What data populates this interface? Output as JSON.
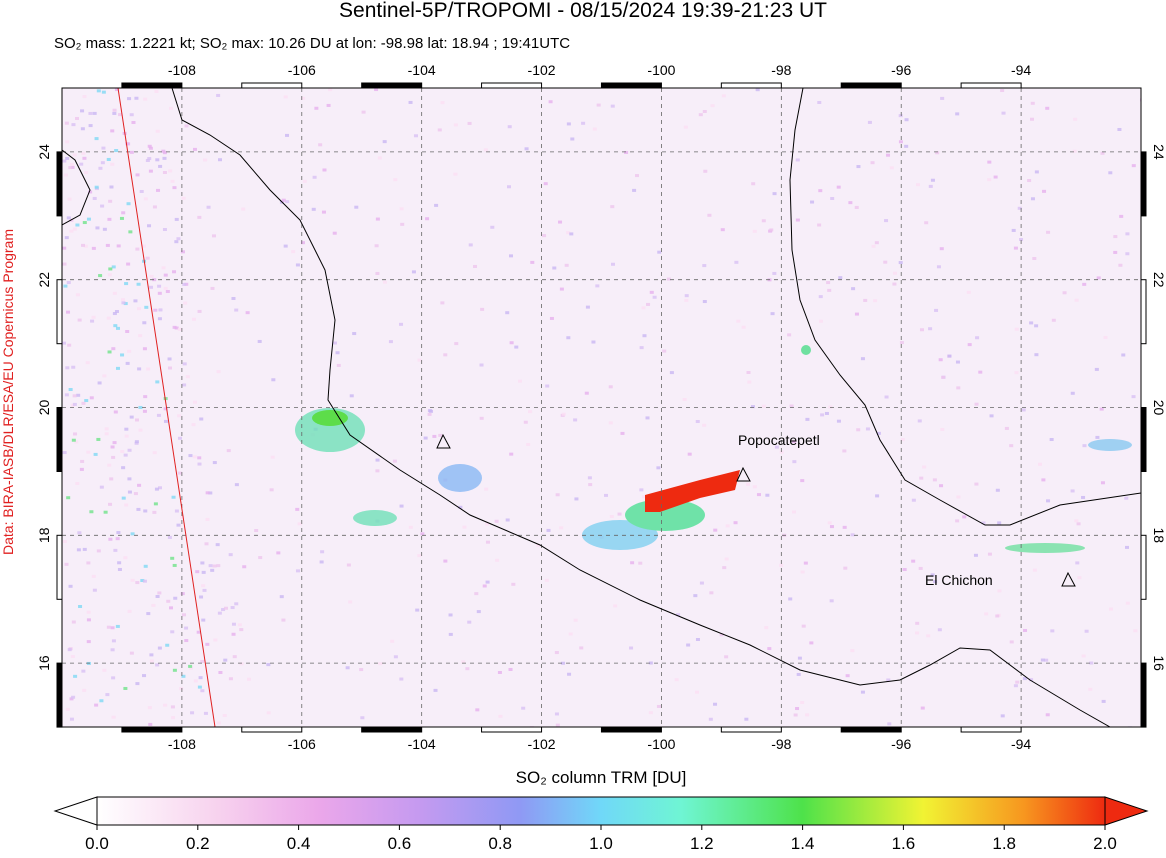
{
  "header": {
    "title": "Sentinel-5P/TROPOMI - 08/15/2024 19:39-21:23 UT",
    "subtitle": "SO₂ mass: 1.2221 kt; SO₂ max: 10.26 DU at lon: -98.98 lat: 18.94 ; 19:41UTC"
  },
  "map": {
    "lonlim": [
      -110,
      -92
    ],
    "latlim": [
      15,
      25
    ],
    "lon_ticks": [
      -108,
      -106,
      -104,
      -102,
      -100,
      -98,
      -96,
      -94
    ],
    "lat_ticks": [
      16,
      18,
      20,
      22,
      24
    ],
    "labels": [
      "Popocatepetl",
      "El Chichon"
    ],
    "credit": "Data: BIRA-IASB/DLR/ESA/EU Copernicus Program"
  },
  "colorbar": {
    "label": "SO₂ column TRM [DU]",
    "range": [
      0,
      2
    ],
    "ticks": [
      {
        "value": 0,
        "label": "0.0"
      },
      0.2,
      0.4,
      0.6,
      0.8,
      {
        "value": 1,
        "label": "1.0"
      },
      1.2,
      1.4,
      1.6,
      1.8,
      {
        "value": 2,
        "label": "2.0"
      }
    ]
  }
}
